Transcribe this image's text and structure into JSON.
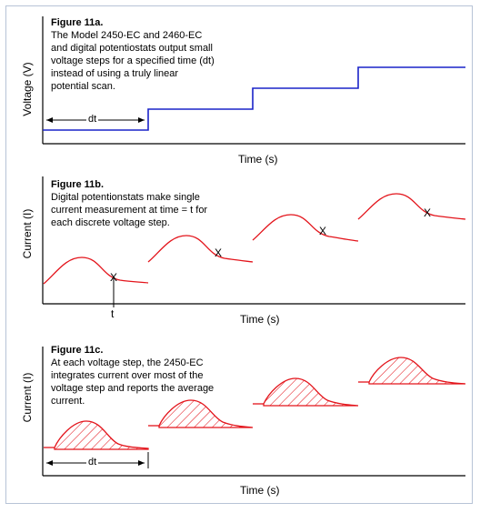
{
  "panel_a": {
    "title": "Figure 11a.",
    "text": "The Model 2450-EC and 2460-EC and digital potentiostats output small voltage steps for a specified time (dt) instead of using a truly linear potential scan.",
    "ylabel": "Voltage (V)",
    "xlabel": "Time (s)",
    "step_label": "dt",
    "step_color": "#1a23c8"
  },
  "panel_b": {
    "title": "Figure 11b.",
    "text": "Digital potentionstats make single current measurement at time = t for each discrete voltage step.",
    "ylabel": "Current (I)",
    "xlabel": "Time (s)",
    "marker_label": "X",
    "time_label": "t",
    "curve_color": "#e3141b"
  },
  "panel_c": {
    "title": "Figure 11c.",
    "text": "At each voltage step, the 2450-EC integrates current over most of the voltage step and reports the average current.",
    "ylabel": "Current (I)",
    "xlabel": "Time (s)",
    "step_label": "dt",
    "curve_color": "#e3141b"
  }
}
